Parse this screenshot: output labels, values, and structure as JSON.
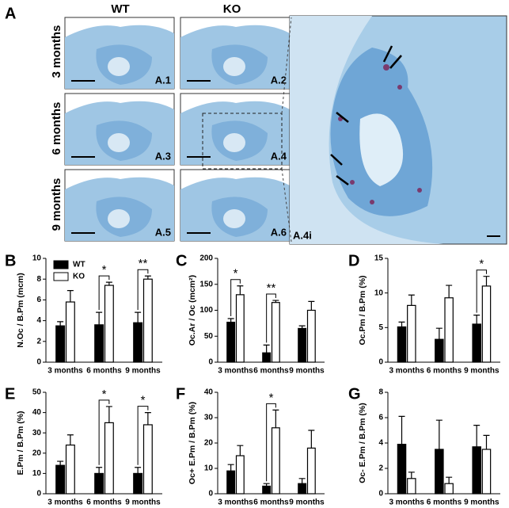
{
  "figure": {
    "panel": "A",
    "columns": [
      "WT",
      "KO"
    ],
    "rows": [
      "3 months",
      "6 months",
      "9 months"
    ],
    "images": [
      "A.1",
      "A.2",
      "A.3",
      "A.4",
      "A.5",
      "A.6",
      "A.4i"
    ]
  },
  "chart_data": [
    {
      "type": "bar",
      "panel": "B",
      "y_label": "N.Oc / B.Pm (mcm)",
      "categories": [
        "3 months",
        "6 months",
        "9 months"
      ],
      "ylim": [
        0,
        10
      ],
      "yticks": [
        0,
        2,
        4,
        6,
        8,
        10
      ],
      "legend": true,
      "series": [
        {
          "name": "WT",
          "color": "#000000",
          "values": [
            3.5,
            3.6,
            3.8
          ],
          "errors": [
            0.4,
            1.2,
            1.0
          ]
        },
        {
          "name": "KO",
          "color": "#ffffff",
          "values": [
            5.8,
            7.4,
            8.0
          ],
          "errors": [
            1.1,
            0.3,
            0.3
          ]
        }
      ],
      "significance": [
        {
          "category": "6 months",
          "label": "*"
        },
        {
          "category": "9 months",
          "label": "**"
        }
      ]
    },
    {
      "type": "bar",
      "panel": "C",
      "y_label": "Oc.Ar / Oc (mcm²)",
      "categories": [
        "3 months",
        "6 months",
        "9 months"
      ],
      "ylim": [
        0,
        200
      ],
      "yticks": [
        0,
        50,
        100,
        150,
        200
      ],
      "series": [
        {
          "name": "WT",
          "color": "#000000",
          "values": [
            77,
            18,
            65
          ],
          "errors": [
            7,
            15,
            5
          ]
        },
        {
          "name": "KO",
          "color": "#ffffff",
          "values": [
            130,
            115,
            100
          ],
          "errors": [
            17,
            4,
            17
          ]
        }
      ],
      "significance": [
        {
          "category": "3 months",
          "label": "*"
        },
        {
          "category": "6 months",
          "label": "**"
        }
      ]
    },
    {
      "type": "bar",
      "panel": "D",
      "y_label": "Oc.Pm / B.Pm (%)",
      "categories": [
        "3 months",
        "6 months",
        "9 months"
      ],
      "ylim": [
        0,
        15
      ],
      "yticks": [
        0,
        5,
        10,
        15
      ],
      "series": [
        {
          "name": "WT",
          "color": "#000000",
          "values": [
            5.1,
            3.3,
            5.5
          ],
          "errors": [
            0.7,
            1.6,
            1.3
          ]
        },
        {
          "name": "KO",
          "color": "#ffffff",
          "values": [
            8.2,
            9.3,
            11.0
          ],
          "errors": [
            1.5,
            1.8,
            1.4
          ]
        }
      ],
      "significance": [
        {
          "category": "9 months",
          "label": "*"
        }
      ]
    },
    {
      "type": "bar",
      "panel": "E",
      "y_label": "E.Pm / B.Pm (%)",
      "categories": [
        "3 months",
        "6 months",
        "9 months"
      ],
      "ylim": [
        0,
        50
      ],
      "yticks": [
        0,
        10,
        20,
        30,
        40,
        50
      ],
      "series": [
        {
          "name": "WT",
          "color": "#000000",
          "values": [
            14,
            10,
            10
          ],
          "errors": [
            2,
            3,
            3
          ]
        },
        {
          "name": "KO",
          "color": "#ffffff",
          "values": [
            24,
            35,
            34
          ],
          "errors": [
            5,
            8,
            6
          ]
        }
      ],
      "significance": [
        {
          "category": "6 months",
          "label": "*"
        },
        {
          "category": "9 months",
          "label": "*"
        }
      ]
    },
    {
      "type": "bar",
      "panel": "F",
      "y_label": "Oc+ E.Pm / B.Pm (%)",
      "categories": [
        "3 months",
        "6 months",
        "9 months"
      ],
      "ylim": [
        0,
        40
      ],
      "yticks": [
        0,
        10,
        20,
        30,
        40
      ],
      "series": [
        {
          "name": "WT",
          "color": "#000000",
          "values": [
            9,
            3,
            4
          ],
          "errors": [
            2.5,
            1,
            2
          ]
        },
        {
          "name": "KO",
          "color": "#ffffff",
          "values": [
            15,
            26,
            18
          ],
          "errors": [
            4,
            7,
            7
          ]
        }
      ],
      "significance": [
        {
          "category": "6 months",
          "label": "*"
        }
      ]
    },
    {
      "type": "bar",
      "panel": "G",
      "y_label": "Oc- E.Pm / B.Pm (%)",
      "categories": [
        "3 months",
        "6 months",
        "9 months"
      ],
      "ylim": [
        0,
        8
      ],
      "yticks": [
        0,
        2,
        4,
        6,
        8
      ],
      "series": [
        {
          "name": "WT",
          "color": "#000000",
          "values": [
            3.9,
            3.5,
            3.7
          ],
          "errors": [
            2.2,
            2.3,
            1.7
          ]
        },
        {
          "name": "KO",
          "color": "#ffffff",
          "values": [
            1.2,
            0.8,
            3.5
          ],
          "errors": [
            0.5,
            0.5,
            1.1
          ]
        }
      ],
      "significance": []
    }
  ]
}
